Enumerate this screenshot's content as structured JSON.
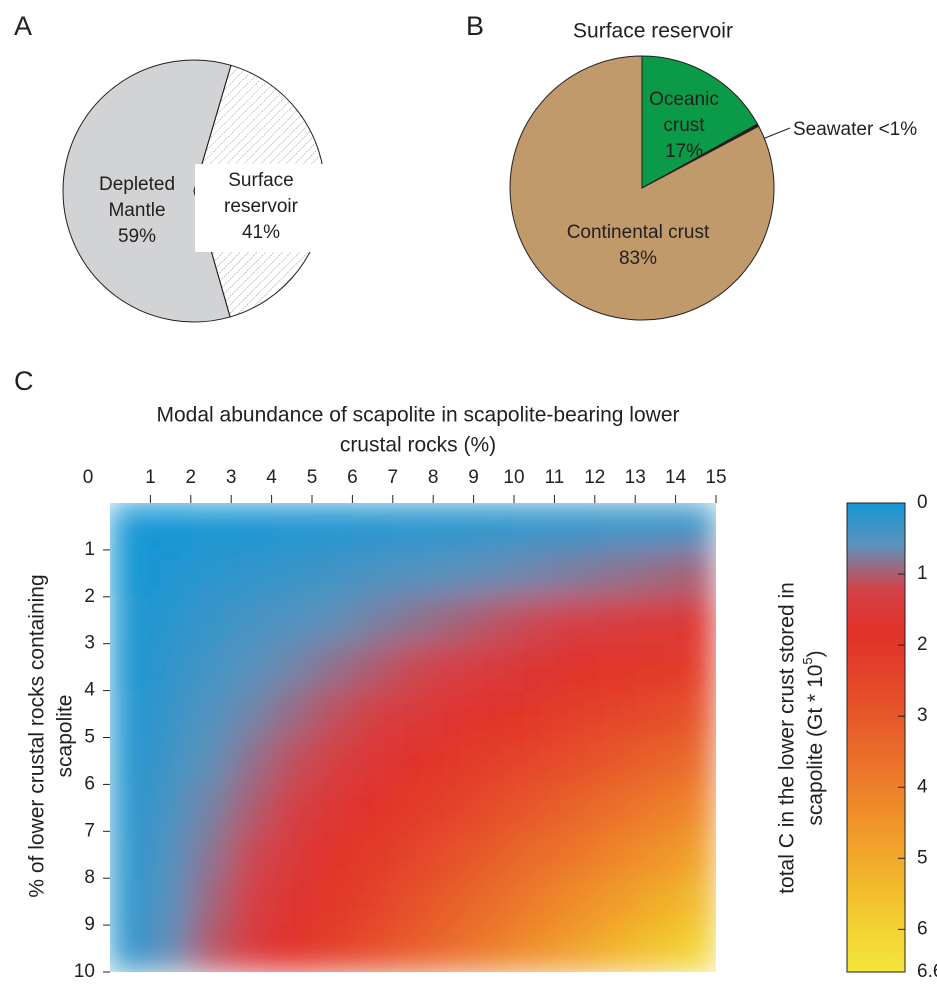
{
  "chart_data": [
    {
      "type": "pie",
      "panel": "A",
      "categories": [
        "Depleted Mantle",
        "Surface reservoir"
      ],
      "values": [
        59,
        41
      ],
      "value_labels": [
        "59%",
        "41%"
      ],
      "colors": [
        "#d1d3d4",
        "#ffffff"
      ],
      "hatch": [
        false,
        true
      ]
    },
    {
      "type": "pie",
      "panel": "B",
      "title": "Surface reservoir",
      "categories": [
        "Oceanic crust",
        "Seawater",
        "Continental crust"
      ],
      "values": [
        17,
        0.3,
        83
      ],
      "value_labels": [
        "17%",
        "<1%",
        "83%"
      ],
      "colors": [
        "#0b9a48",
        "#231f20",
        "#c19a6c"
      ]
    },
    {
      "type": "heatmap",
      "panel": "C",
      "xlabel": [
        "Modal abundance of scapolite in scapolite-bearing lower",
        "crustal rocks (%)"
      ],
      "ylabel": [
        "% of lower crustal rocks containing",
        "scapolite"
      ],
      "xlim": [
        0,
        15
      ],
      "ylim": [
        0,
        10
      ],
      "xticks": [
        0,
        1,
        2,
        3,
        4,
        5,
        6,
        7,
        8,
        9,
        10,
        11,
        12,
        13,
        14,
        15
      ],
      "yticks": [
        1,
        2,
        3,
        4,
        5,
        6,
        7,
        8,
        9,
        10
      ],
      "xbins": [
        0,
        1,
        2,
        3,
        4,
        5,
        6,
        7,
        8,
        9,
        10,
        11,
        12,
        13,
        14,
        15
      ],
      "ybins": [
        0,
        1,
        2,
        3,
        4,
        5,
        6,
        7,
        8,
        9,
        10
      ],
      "values": [
        [
          0.01,
          0.03,
          0.06,
          0.08,
          0.1,
          0.12,
          0.14,
          0.17,
          0.19,
          0.21,
          0.23,
          0.25,
          0.28,
          0.3,
          0.32
        ],
        [
          0.03,
          0.1,
          0.17,
          0.23,
          0.3,
          0.36,
          0.43,
          0.5,
          0.56,
          0.63,
          0.69,
          0.76,
          0.83,
          0.89,
          0.96
        ],
        [
          0.06,
          0.17,
          0.28,
          0.39,
          0.5,
          0.61,
          0.72,
          0.83,
          0.94,
          1.05,
          1.16,
          1.27,
          1.38,
          1.49,
          1.6
        ],
        [
          0.08,
          0.23,
          0.39,
          0.54,
          0.69,
          0.85,
          1,
          1.16,
          1.31,
          1.46,
          1.62,
          1.77,
          1.93,
          2.08,
          2.23
        ],
        [
          0.1,
          0.3,
          0.5,
          0.69,
          0.89,
          1.09,
          1.29,
          1.49,
          1.68,
          1.88,
          2.08,
          2.28,
          2.48,
          2.67,
          2.87
        ],
        [
          0.12,
          0.36,
          0.61,
          0.85,
          1.09,
          1.33,
          1.57,
          1.82,
          2.06,
          2.3,
          2.54,
          2.78,
          3.03,
          3.27,
          3.51
        ],
        [
          0.14,
          0.43,
          0.72,
          1,
          1.29,
          1.57,
          1.86,
          2.15,
          2.43,
          2.72,
          3,
          3.29,
          3.58,
          3.86,
          4.15
        ],
        [
          0.17,
          0.5,
          0.83,
          1.16,
          1.49,
          1.82,
          2.15,
          2.48,
          2.81,
          3.14,
          3.47,
          3.8,
          4.13,
          4.46,
          4.79
        ],
        [
          0.19,
          0.56,
          0.94,
          1.31,
          1.68,
          2.06,
          2.43,
          2.81,
          3.18,
          3.55,
          3.93,
          4.3,
          4.68,
          5.05,
          5.42
        ],
        [
          0.21,
          0.63,
          1.05,
          1.46,
          1.88,
          2.3,
          2.72,
          3.14,
          3.55,
          3.97,
          4.39,
          4.81,
          5.23,
          5.64,
          6.06
        ]
      ],
      "clim": [
        0,
        6.6
      ],
      "cticks": [
        0,
        1,
        2,
        3,
        4,
        5,
        6,
        6.6
      ],
      "colors": [
        "#1597d5",
        "#5d92bb",
        "#d2434a",
        "#e2312a",
        "#e3422a",
        "#e6582a",
        "#ea6f2a",
        "#ee8829",
        "#f1a02a",
        "#f2ba2d",
        "#f3d233",
        "#f4e63b"
      ],
      "colorbar_label": [
        "total C in the lower crust stored in",
        "scapolite (Gt * 10"
      ],
      "colorbar_sup": "5",
      "colorbar_end": ")"
    }
  ]
}
